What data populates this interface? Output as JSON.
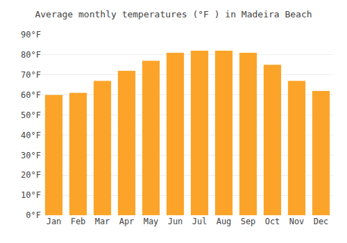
{
  "chart_data": {
    "type": "bar",
    "title": "Average monthly temperatures (°F ) in Madeira Beach",
    "categories": [
      "Jan",
      "Feb",
      "Mar",
      "Apr",
      "May",
      "Jun",
      "Jul",
      "Aug",
      "Sep",
      "Oct",
      "Nov",
      "Dec"
    ],
    "values": [
      60,
      61,
      67,
      72,
      77,
      81,
      82,
      82,
      81,
      75,
      67,
      62
    ],
    "color": "#FCA429",
    "ylim": [
      0,
      90
    ],
    "yticks": [
      {
        "value": 0,
        "label": "0°F"
      },
      {
        "value": 10,
        "label": "10°F"
      },
      {
        "value": 20,
        "label": "20°F"
      },
      {
        "value": 30,
        "label": "30°F"
      },
      {
        "value": 40,
        "label": "40°F"
      },
      {
        "value": 50,
        "label": "50°F"
      },
      {
        "value": 60,
        "label": "60°F"
      },
      {
        "value": 70,
        "label": "70°F"
      },
      {
        "value": 80,
        "label": "80°F"
      },
      {
        "value": 90,
        "label": "90°F"
      }
    ],
    "grid": true
  }
}
